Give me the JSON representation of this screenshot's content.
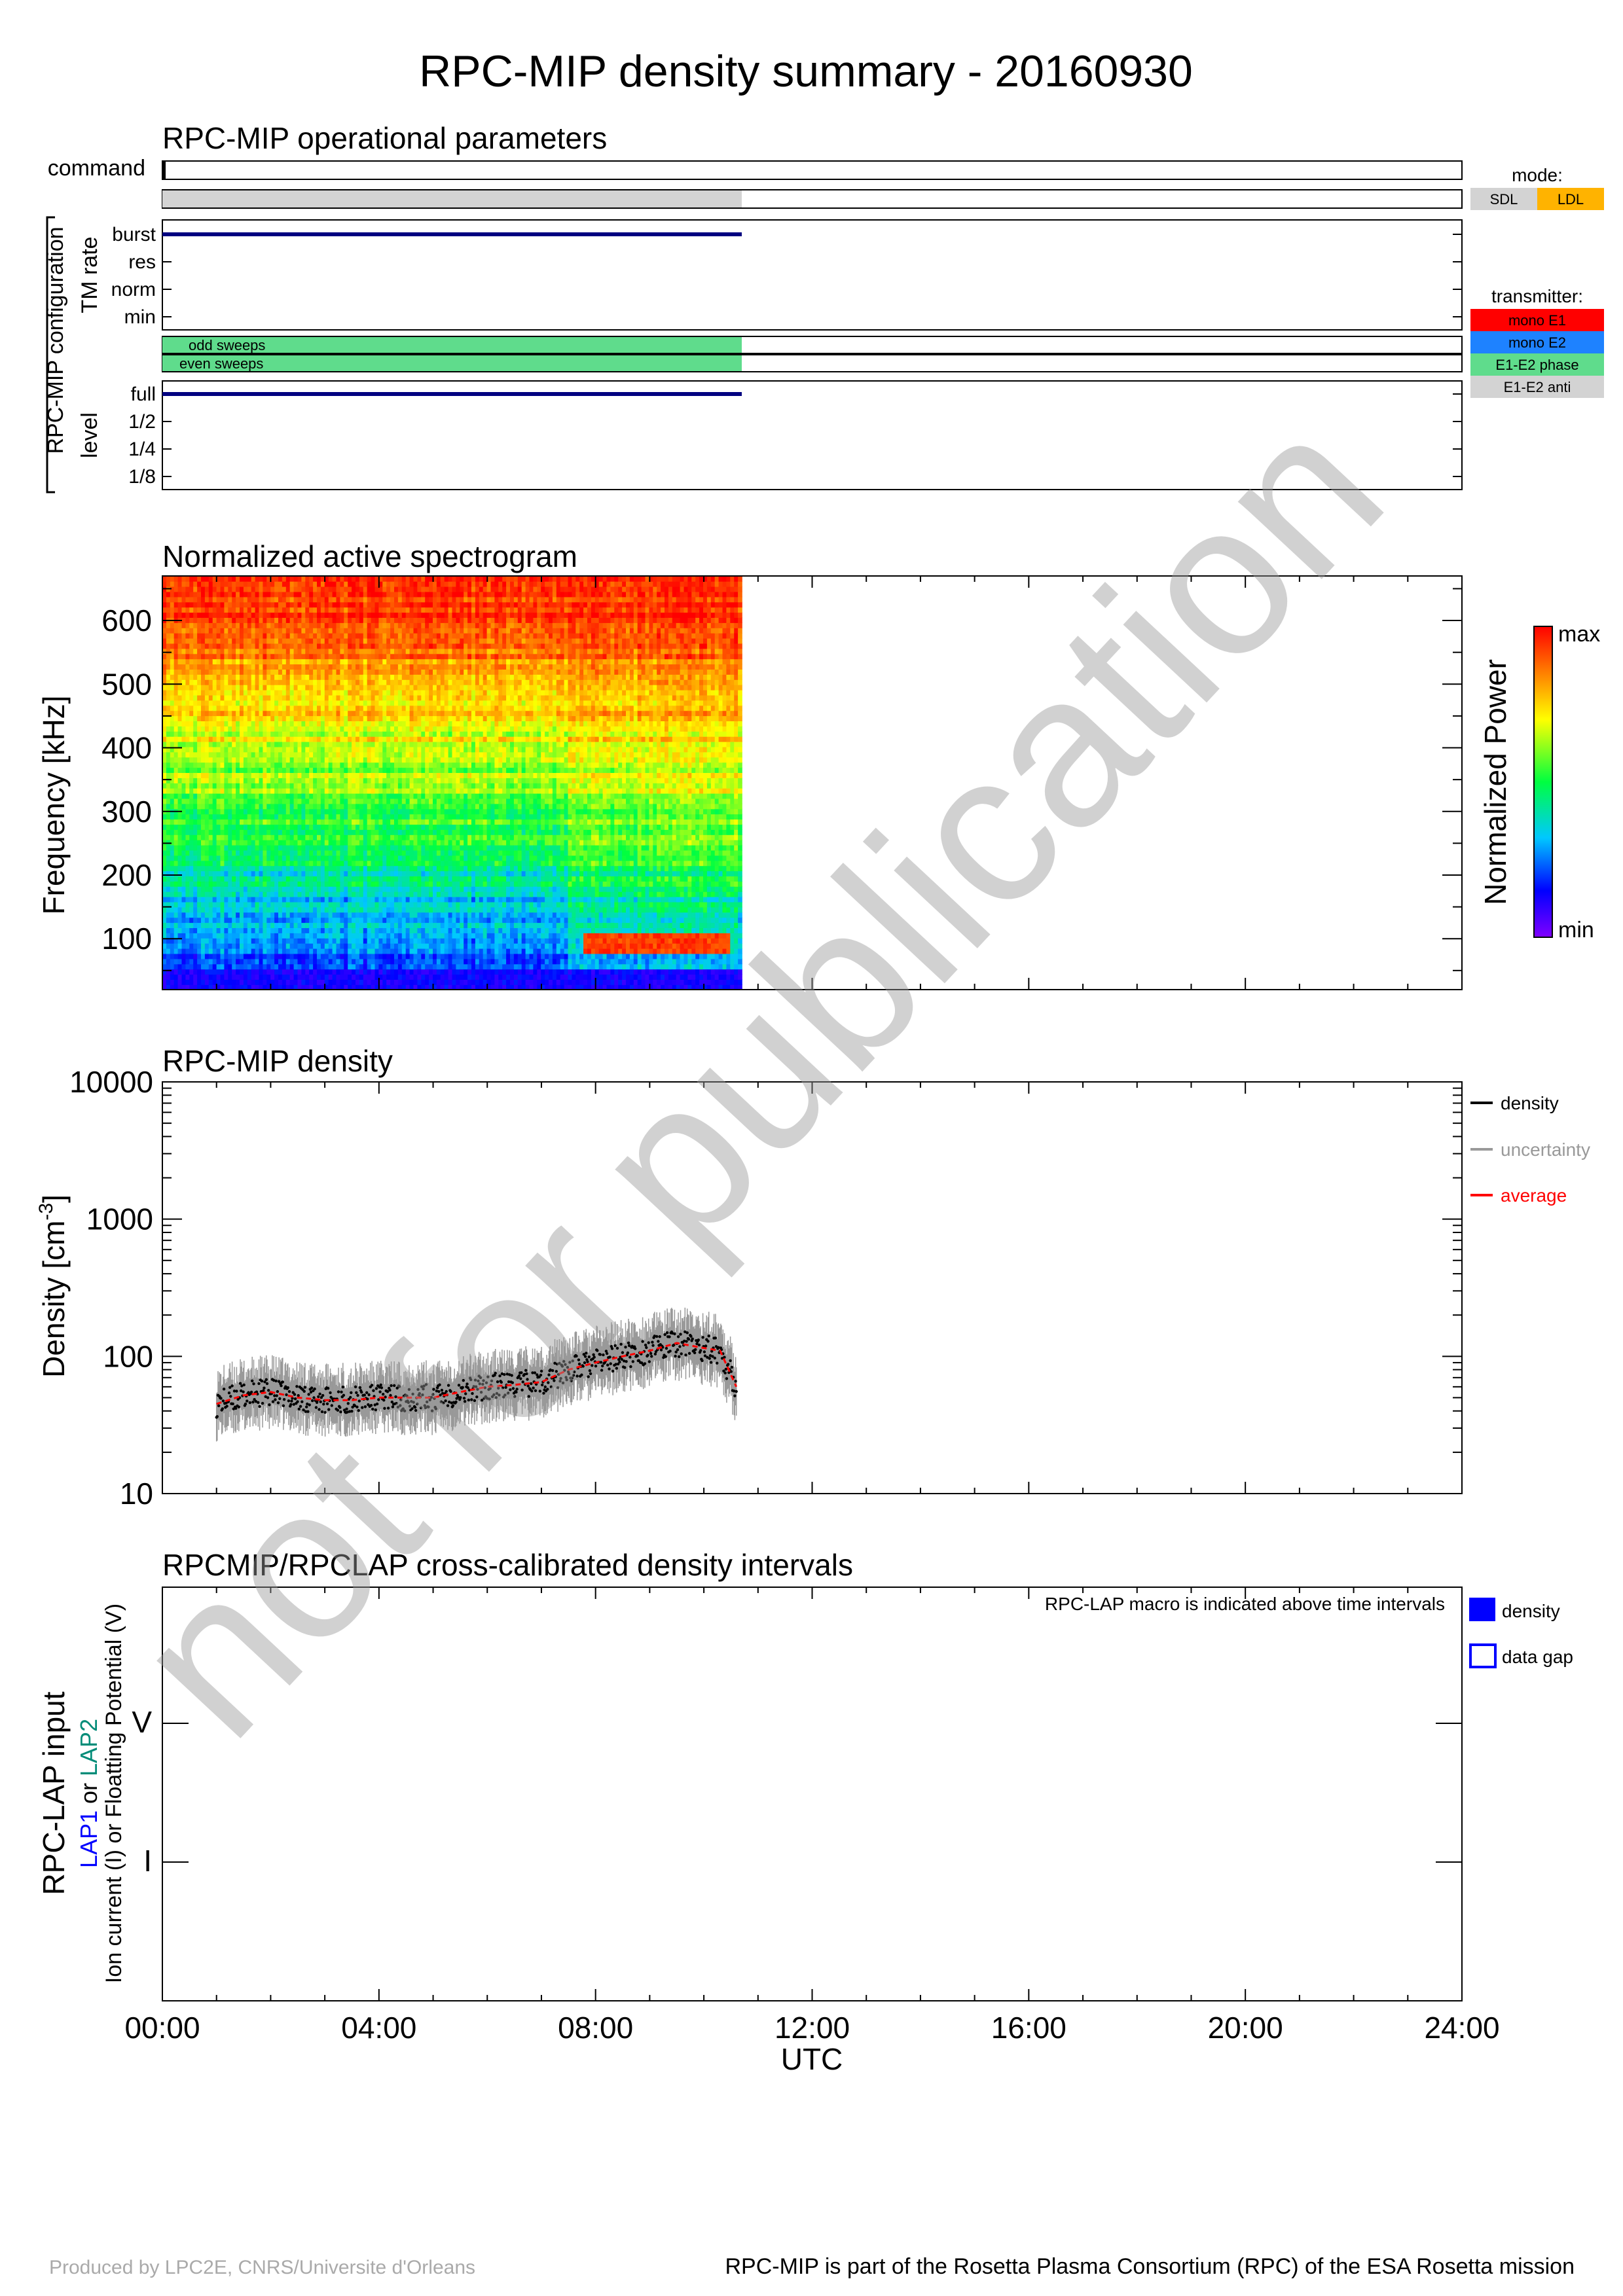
{
  "title": "RPC-MIP density summary - 20160930",
  "x_axis": {
    "ticks": [
      "00:00",
      "04:00",
      "08:00",
      "12:00",
      "16:00",
      "20:00",
      "24:00"
    ],
    "label": "UTC",
    "range_hours": [
      0,
      24
    ]
  },
  "ops": {
    "title": "RPC-MIP operational parameters",
    "command_label": "command",
    "config_label": "RPC-MIP configuration",
    "tm_rate_label": "TM rate",
    "tm_rate_levels": [
      "burst",
      "res",
      "norm",
      "min"
    ],
    "odd_sweeps": "odd sweeps",
    "even_sweeps": "even sweeps",
    "level_label": "level",
    "level_levels": [
      "full",
      "1/2",
      "1/4",
      "1/8"
    ],
    "mode_title": "mode:",
    "mode_items": [
      {
        "label": "SDL",
        "color": "#d3d3d3"
      },
      {
        "label": "LDL",
        "color": "#ffb300"
      }
    ],
    "transmitter_title": "transmitter:",
    "transmitter_items": [
      {
        "label": "mono E1",
        "color": "#ff0000"
      },
      {
        "label": "mono E2",
        "color": "#1e82ff"
      },
      {
        "label": "E1-E2 phase",
        "color": "#5fdc8c"
      },
      {
        "label": "E1-E2 anti",
        "color": "#d3d3d3"
      }
    ],
    "sdl_bar_hours": [
      0,
      10.7
    ],
    "tm_burst_hours": [
      0,
      10.7
    ],
    "sweeps_hours": [
      0,
      10.7
    ],
    "level_full_hours": [
      0,
      10.7
    ],
    "line_color": "#000080"
  },
  "spectrogram": {
    "title": "Normalized active spectrogram",
    "ylabel": "Frequency [kHz]",
    "yticks": [
      "100",
      "200",
      "300",
      "400",
      "500",
      "600"
    ],
    "colorbar_label": "Normalized Power",
    "cb_max": "max",
    "cb_min": "min"
  },
  "density": {
    "title": "RPC-MIP density",
    "ylabel": "Density [cm",
    "ylabel_sup": "-3",
    "ylabel_end": "]",
    "yticks": [
      "10",
      "100",
      "1000",
      "10000"
    ],
    "legend": [
      {
        "label": "density",
        "color": "#000000"
      },
      {
        "label": "uncertainty",
        "color": "#999999"
      },
      {
        "label": "average",
        "color": "#ff0000"
      }
    ]
  },
  "lap": {
    "title": "RPCMIP/RPCLAP cross-calibrated density intervals",
    "note": "RPC-LAP macro is indicated above time intervals",
    "ylabel_main": "RPC-LAP input",
    "ylabel_lap1": "LAP1",
    "ylabel_or": " or ",
    "ylabel_lap2": "LAP2",
    "ylabel_sub": "Ion current (I) or Floatting Potential (V)",
    "yticks": [
      "V",
      "I"
    ],
    "legend": [
      {
        "label": "density",
        "style": "filled"
      },
      {
        "label": "data gap",
        "style": "outline"
      }
    ]
  },
  "watermark": "not for publication",
  "footer": {
    "left": "Produced by LPC2E, CNRS/Universite d'Orleans",
    "right": "RPC-MIP is part of the Rosetta Plasma Consortium (RPC) of the ESA Rosetta mission"
  },
  "chart_data": [
    {
      "type": "heatmap",
      "title": "Normalized active spectrogram",
      "ylabel": "Frequency [kHz]",
      "xlim_hours": [
        0,
        24
      ],
      "ylim_khz": [
        20,
        670
      ],
      "data_hours": [
        0,
        10.7
      ],
      "colorbar": {
        "label": "Normalized Power",
        "min": "min",
        "max": "max"
      }
    },
    {
      "type": "scatter",
      "title": "RPC-MIP density",
      "ylabel": "Density [cm-3]",
      "yscale": "log",
      "ylim": [
        10,
        10000
      ],
      "xlim_hours": [
        0,
        24
      ],
      "series": [
        {
          "name": "average",
          "x_hours": [
            1.0,
            1.5,
            2.0,
            2.5,
            3.0,
            3.5,
            4.0,
            4.5,
            5.0,
            5.5,
            6.0,
            6.5,
            7.0,
            7.5,
            8.0,
            8.5,
            9.0,
            9.5,
            10.0,
            10.3,
            10.6
          ],
          "values": [
            45,
            52,
            55,
            50,
            48,
            48,
            50,
            50,
            50,
            55,
            60,
            62,
            65,
            80,
            90,
            100,
            110,
            125,
            115,
            110,
            60
          ]
        }
      ],
      "uncertainty_factor": 1.5
    }
  ]
}
